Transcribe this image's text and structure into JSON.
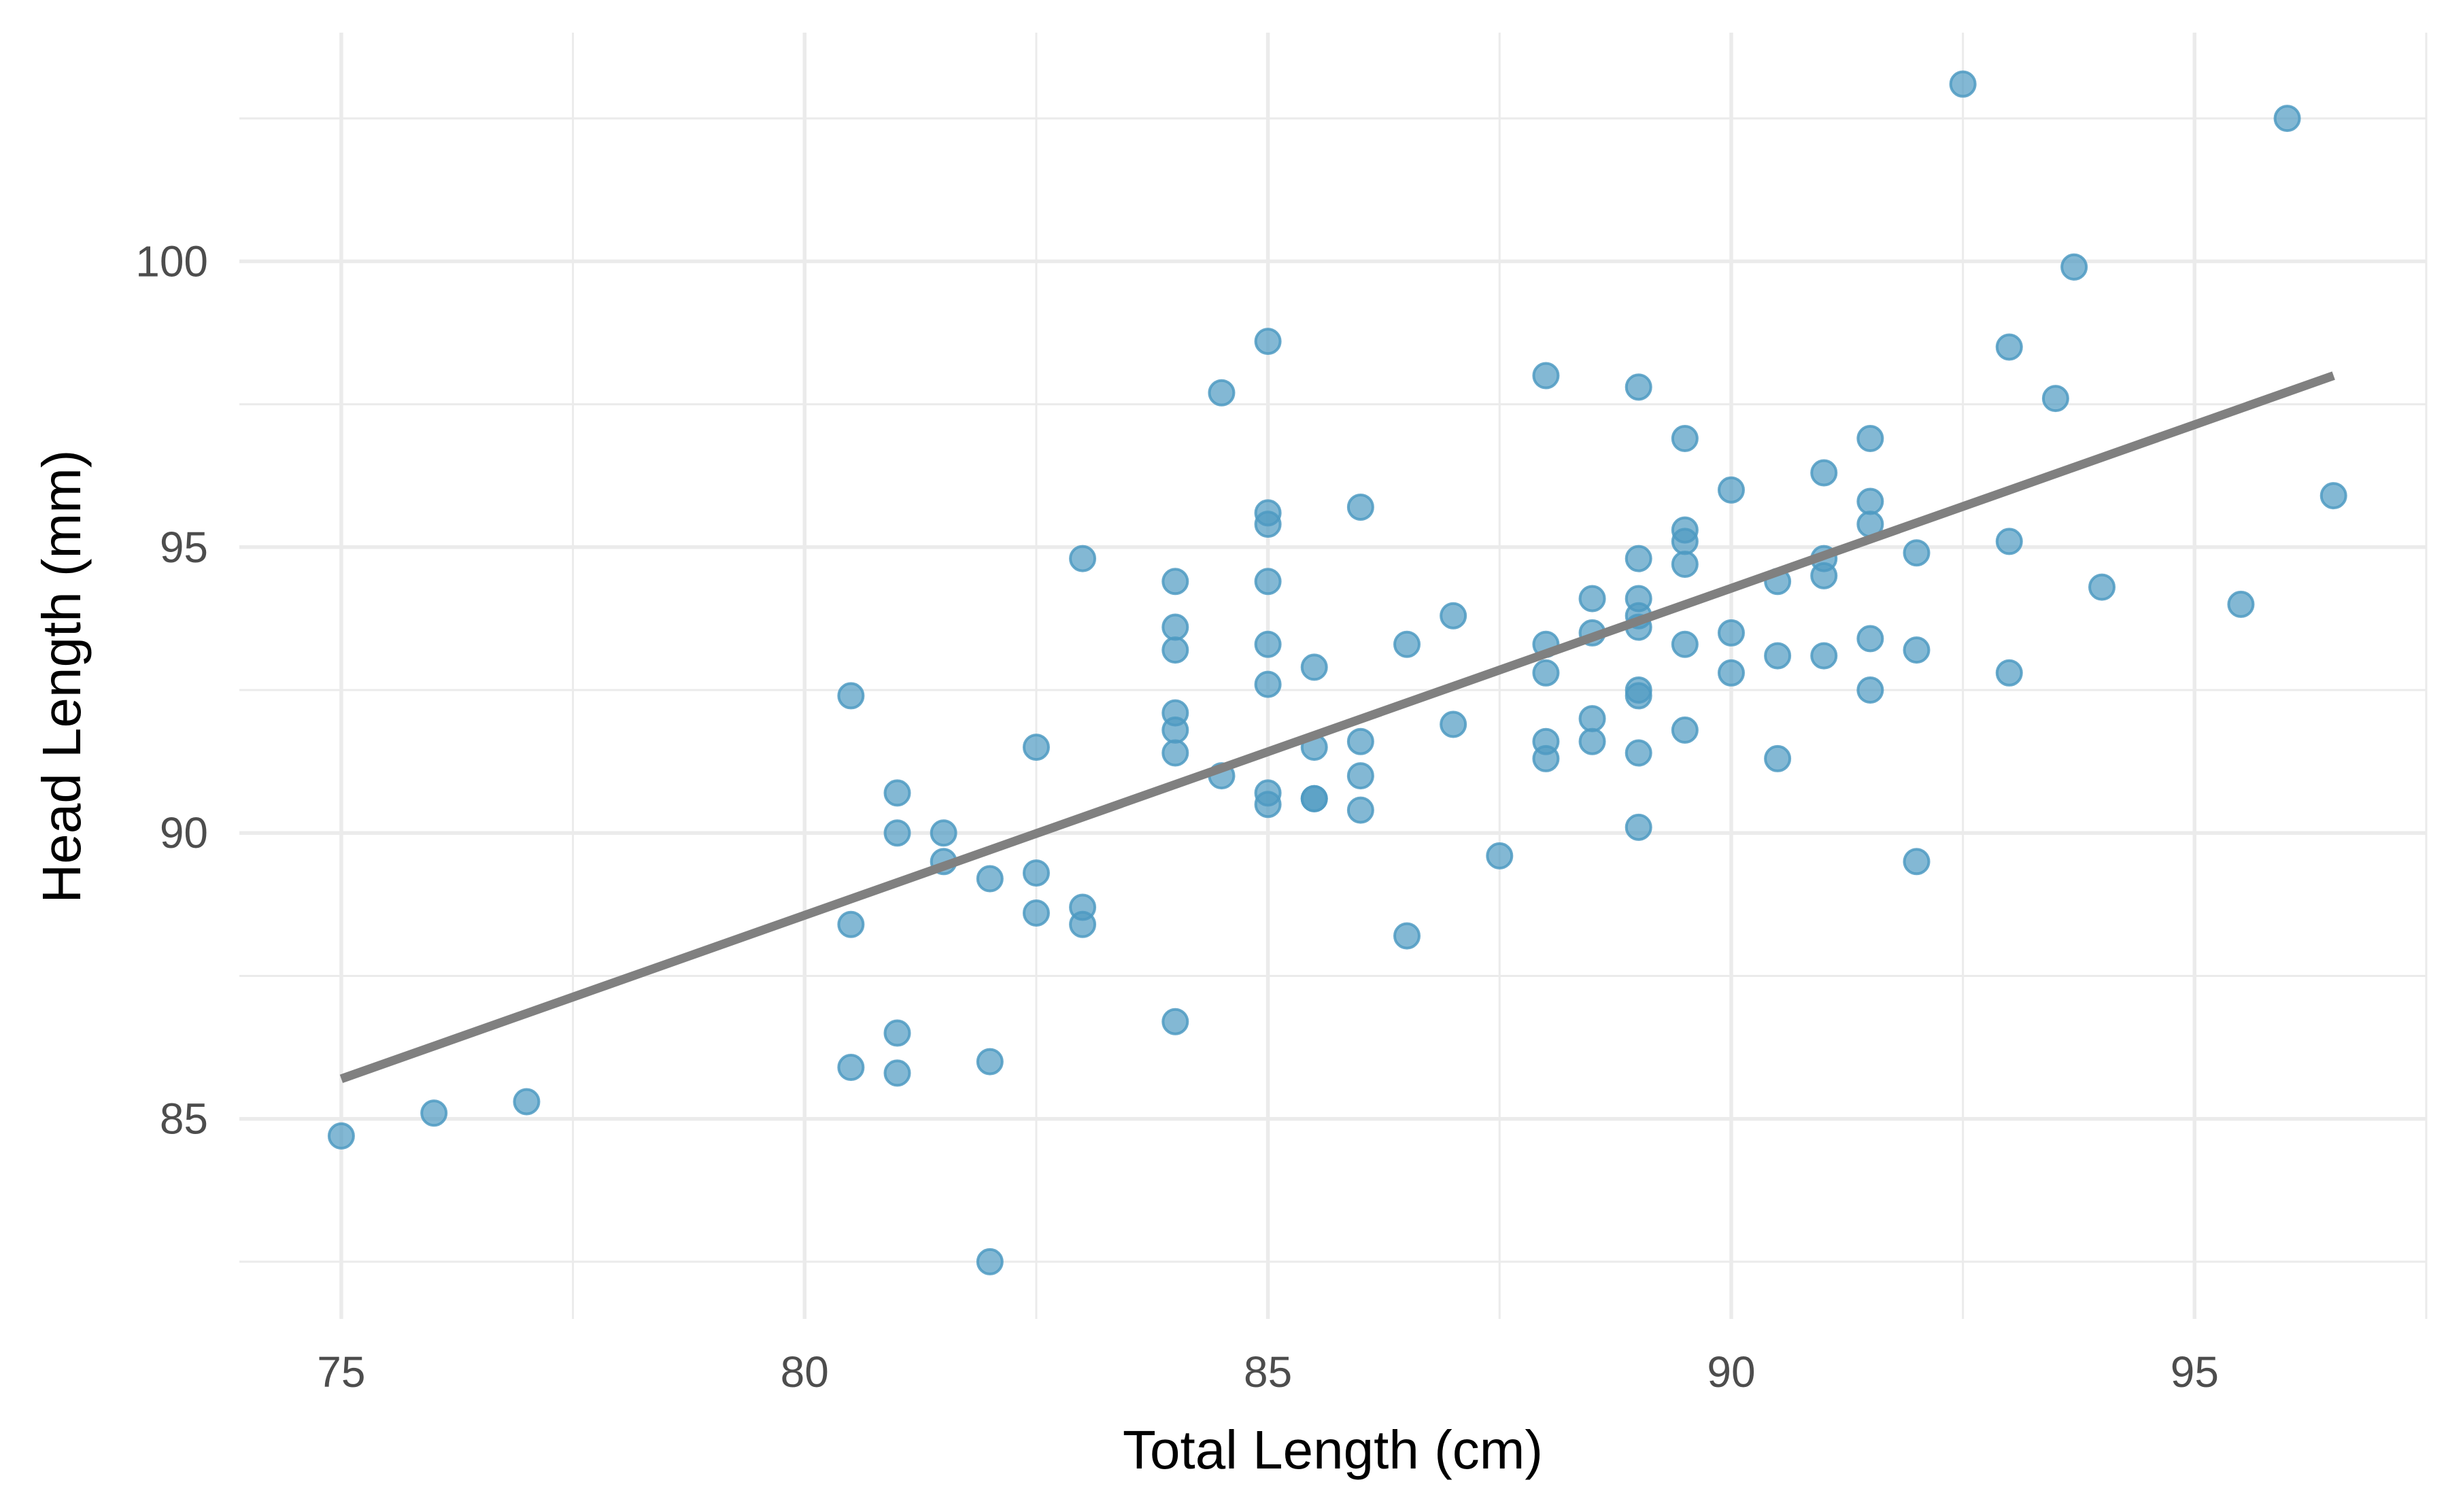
{
  "chart_data": {
    "type": "scatter",
    "title": "",
    "xlabel": "Total Length (cm)",
    "ylabel": "Head Length (mm)",
    "xlim": [
      73.9,
      97.5
    ],
    "ylim": [
      81.5,
      104.0
    ],
    "xticks": [
      75,
      80,
      85,
      90,
      95
    ],
    "yticks": [
      85,
      90,
      95,
      100
    ],
    "x_minor": [
      77.5,
      82.5,
      87.5,
      92.5,
      97.5
    ],
    "y_minor": [
      82.5,
      87.5,
      92.5,
      97.5,
      102.5
    ],
    "point_color": "#4e9ac2",
    "line_color": "#808080",
    "grid": true,
    "regression_line": {
      "x": [
        75,
        96.5
      ],
      "y": [
        85.7,
        98.0
      ]
    },
    "points": [
      [
        75,
        84.7
      ],
      [
        76,
        85.1
      ],
      [
        77,
        85.3
      ],
      [
        80.5,
        92.4
      ],
      [
        80.5,
        88.4
      ],
      [
        80.5,
        85.9
      ],
      [
        81,
        90.7
      ],
      [
        81,
        90.0
      ],
      [
        81,
        86.5
      ],
      [
        81,
        85.8
      ],
      [
        81.5,
        90.0
      ],
      [
        81.5,
        89.5
      ],
      [
        82,
        89.2
      ],
      [
        82,
        86.0
      ],
      [
        82,
        82.5
      ],
      [
        82.5,
        91.5
      ],
      [
        82.5,
        89.3
      ],
      [
        82.5,
        88.6
      ],
      [
        83,
        94.8
      ],
      [
        83,
        88.7
      ],
      [
        83,
        88.4
      ],
      [
        84,
        94.4
      ],
      [
        84,
        93.6
      ],
      [
        84,
        93.2
      ],
      [
        84,
        92.1
      ],
      [
        84,
        91.8
      ],
      [
        84,
        91.4
      ],
      [
        84,
        86.7
      ],
      [
        84.5,
        97.7
      ],
      [
        84.5,
        91.0
      ],
      [
        85,
        98.6
      ],
      [
        85,
        95.6
      ],
      [
        85,
        95.4
      ],
      [
        85,
        94.4
      ],
      [
        85,
        93.3
      ],
      [
        85,
        92.6
      ],
      [
        85,
        90.7
      ],
      [
        85,
        90.5
      ],
      [
        85.5,
        92.9
      ],
      [
        85.5,
        91.5
      ],
      [
        85.5,
        90.6
      ],
      [
        85.5,
        90.6
      ],
      [
        86,
        95.7
      ],
      [
        86,
        91.6
      ],
      [
        86,
        91.0
      ],
      [
        86,
        90.4
      ],
      [
        86.5,
        93.3
      ],
      [
        86.5,
        88.2
      ],
      [
        87,
        93.8
      ],
      [
        87,
        91.9
      ],
      [
        87.5,
        89.6
      ],
      [
        88,
        98.0
      ],
      [
        88,
        93.3
      ],
      [
        88,
        92.8
      ],
      [
        88,
        91.6
      ],
      [
        88,
        91.3
      ],
      [
        88.5,
        94.1
      ],
      [
        88.5,
        93.5
      ],
      [
        88.5,
        92.0
      ],
      [
        88.5,
        91.6
      ],
      [
        89,
        97.8
      ],
      [
        89,
        94.8
      ],
      [
        89,
        94.1
      ],
      [
        89,
        93.8
      ],
      [
        89,
        93.6
      ],
      [
        89,
        92.5
      ],
      [
        89,
        92.4
      ],
      [
        89,
        91.4
      ],
      [
        89,
        90.1
      ],
      [
        89.5,
        96.9
      ],
      [
        89.5,
        95.3
      ],
      [
        89.5,
        95.1
      ],
      [
        89.5,
        94.7
      ],
      [
        89.5,
        93.3
      ],
      [
        89.5,
        91.8
      ],
      [
        90,
        96.0
      ],
      [
        90,
        93.5
      ],
      [
        90,
        92.8
      ],
      [
        90.5,
        94.4
      ],
      [
        90.5,
        93.1
      ],
      [
        90.5,
        91.3
      ],
      [
        91,
        96.3
      ],
      [
        91,
        94.8
      ],
      [
        91,
        94.5
      ],
      [
        91,
        93.1
      ],
      [
        91.5,
        96.9
      ],
      [
        91.5,
        95.8
      ],
      [
        91.5,
        95.4
      ],
      [
        91.5,
        93.4
      ],
      [
        91.5,
        92.5
      ],
      [
        92,
        94.9
      ],
      [
        92,
        93.2
      ],
      [
        92,
        89.5
      ],
      [
        92.5,
        103.1
      ],
      [
        93,
        98.5
      ],
      [
        93,
        95.1
      ],
      [
        93,
        92.8
      ],
      [
        93.5,
        97.6
      ],
      [
        93.7,
        99.9
      ],
      [
        94,
        94.3
      ],
      [
        95.5,
        94.0
      ],
      [
        96,
        102.5
      ],
      [
        96.5,
        95.9
      ]
    ]
  }
}
